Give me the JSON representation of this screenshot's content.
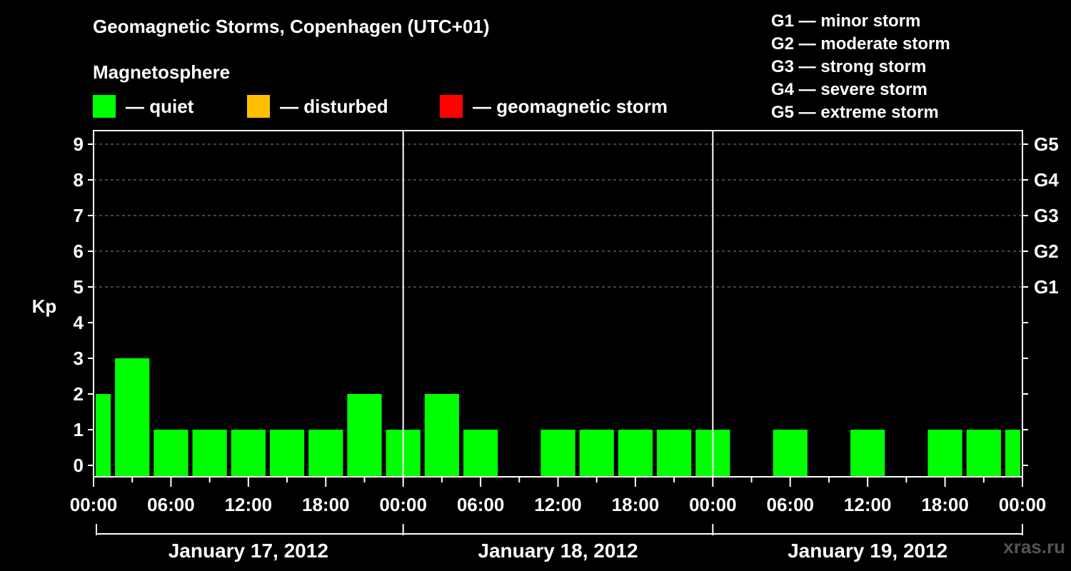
{
  "title": "Geomagnetic Storms, Copenhagen (UTC+01)",
  "subtitle": "Magnetosphere",
  "legend": [
    {
      "label": "— quiet",
      "color": "#00ff00"
    },
    {
      "label": "— disturbed",
      "color": "#ffbf00"
    },
    {
      "label": "— geomagnetic storm",
      "color": "#ff0000"
    }
  ],
  "g_scale": [
    "G1 — minor storm",
    "G2 — moderate storm",
    "G3 — strong storm",
    "G4 — severe storm",
    "G5 — extreme storm"
  ],
  "watermark": "xras.ru",
  "chart_data": {
    "type": "bar",
    "ylabel": "Kp",
    "ylim": [
      0,
      9
    ],
    "y_ticks": [
      "0",
      "1",
      "2",
      "3",
      "4",
      "5",
      "6",
      "7",
      "8",
      "9"
    ],
    "right_axis_labels": [
      {
        "kp": 5,
        "label": "G1"
      },
      {
        "kp": 6,
        "label": "G2"
      },
      {
        "kp": 7,
        "label": "G3"
      },
      {
        "kp": 8,
        "label": "G4"
      },
      {
        "kp": 9,
        "label": "G5"
      }
    ],
    "x_tick_labels": [
      "00:00",
      "06:00",
      "12:00",
      "18:00",
      "00:00",
      "06:00",
      "12:00",
      "18:00",
      "00:00",
      "06:00",
      "12:00",
      "18:00",
      "00:00"
    ],
    "days": [
      "January 17, 2012",
      "January 18, 2012",
      "January 19, 2012"
    ],
    "interval_hours": 3,
    "values": [
      2,
      3,
      1,
      1,
      1,
      1,
      1,
      2,
      1,
      2,
      1,
      0,
      1,
      1,
      1,
      1,
      1,
      0,
      1,
      0,
      1,
      0,
      1,
      1,
      1
    ],
    "bar_color": "#00ff00",
    "grid": true
  }
}
